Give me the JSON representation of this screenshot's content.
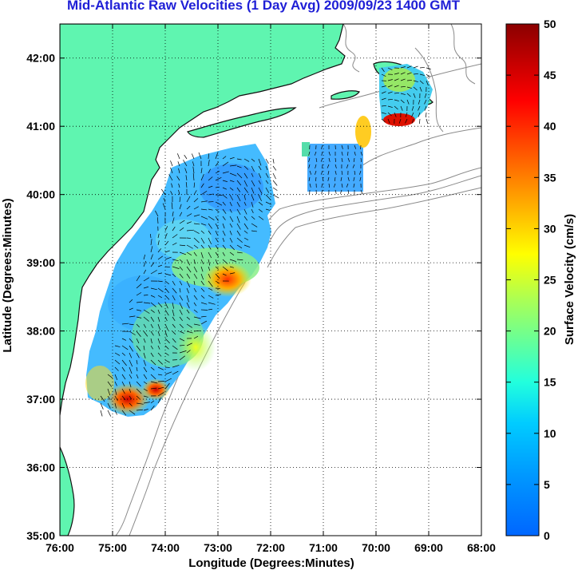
{
  "title": "Mid-Atlantic Raw Velocities (1 Day Avg) 2009/09/23 1400 GMT",
  "x_axis": {
    "label": "Longitude (Degrees:Minutes)",
    "ticks": [
      "76:00",
      "75:00",
      "74:00",
      "73:00",
      "72:00",
      "71:00",
      "70:00",
      "69:00",
      "68:00"
    ]
  },
  "y_axis": {
    "label": "Latitude (Degrees:Minutes)",
    "ticks": [
      "35:00",
      "36:00",
      "37:00",
      "38:00",
      "39:00",
      "40:00",
      "41:00",
      "42:00"
    ]
  },
  "colorbar": {
    "label": "Surface Velocity (cm/s)",
    "ticks": [
      "0",
      "5",
      "10",
      "15",
      "20",
      "25",
      "30",
      "35",
      "40",
      "45",
      "50"
    ],
    "min": 0,
    "max": 50
  },
  "colors": {
    "land": "#5ff5b0",
    "coastline": "#111111",
    "bathymetry": "#8a8a8a",
    "title": "#1f1fd6"
  },
  "chart_data": {
    "type": "heatmap",
    "title": "Mid-Atlantic Raw Velocities (1 Day Avg) 2009/09/23 1400 GMT",
    "xlabel": "Longitude (Degrees:Minutes)",
    "ylabel": "Latitude (Degrees:Minutes)",
    "colorbar_label": "Surface Velocity (cm/s)",
    "xlim": [
      -76,
      -68
    ],
    "ylim": [
      35,
      42.5
    ],
    "clim": [
      0,
      50
    ],
    "grid": true
  }
}
